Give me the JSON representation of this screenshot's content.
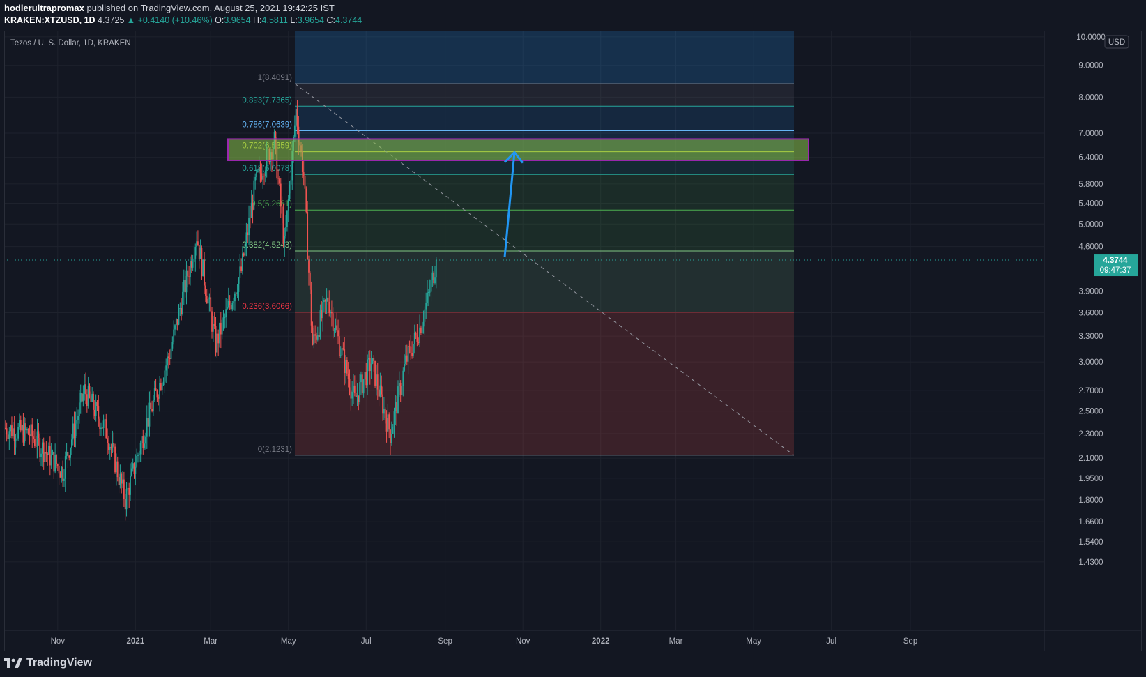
{
  "header": {
    "author": "hodlerultrapromax",
    "published_text": "published on TradingView.com, August 25, 2021 19:42:25 IST",
    "symbol": "KRAKEN:XTZUSD, 1D",
    "last": "4.3725",
    "change": "▲ +0.4140 (+10.46%)",
    "o_label": "O:",
    "o": "3.9654",
    "h_label": "H:",
    "h": "4.5811",
    "l_label": "L:",
    "l": "3.9654",
    "c_label": "C:",
    "c": "4.3744"
  },
  "footer": {
    "logo_text": "TradingView"
  },
  "colors": {
    "background": "#131722",
    "up": "#26a69a",
    "down": "#ef5350",
    "accent_blue": "#2196f3",
    "highlight_box": "#9c27b0"
  },
  "chart_data": {
    "type": "candlestick",
    "title": "Tezos / U. S. Dollar, 1D, KRAKEN",
    "currency": "USD",
    "y_scale": "log",
    "ylim": [
      1.3,
      10.0
    ],
    "y_ticks": [
      "10.0000",
      "9.0000",
      "8.0000",
      "7.0000",
      "6.4000",
      "5.8000",
      "5.4000",
      "5.0000",
      "4.6000",
      "3.9000",
      "3.6000",
      "3.3000",
      "3.0000",
      "2.7000",
      "2.5000",
      "2.3000",
      "2.1000",
      "1.9500",
      "1.8000",
      "1.6600",
      "1.5400",
      "1.4300"
    ],
    "x_ticks": [
      "Nov",
      "2021",
      "Mar",
      "May",
      "Jul",
      "Sep",
      "Nov",
      "2022",
      "Mar",
      "May",
      "Jul",
      "Sep"
    ],
    "price_label": {
      "value": "4.3744",
      "countdown": "09:47:37"
    },
    "fib_levels": [
      {
        "ratio": 1,
        "price": 8.4091,
        "label": "1(8.4091)",
        "color": "#787b86"
      },
      {
        "ratio": 0.893,
        "price": 7.7365,
        "label": "0.893(7.7365)",
        "color": "#26a69a"
      },
      {
        "ratio": 0.786,
        "price": 7.0639,
        "label": "0.786(7.0639)",
        "color": "#64b5f6"
      },
      {
        "ratio": 0.702,
        "price": 6.5359,
        "label": "0.702(6.5359)",
        "color": "#cddc39"
      },
      {
        "ratio": 0.618,
        "price": 6.0078,
        "label": "0.618(6.0078)",
        "color": "#26a69a"
      },
      {
        "ratio": 0.5,
        "price": 5.2661,
        "label": "0.5(5.2661)",
        "color": "#4caf50"
      },
      {
        "ratio": 0.382,
        "price": 4.5243,
        "label": "0.382(4.5243)",
        "color": "#81c784"
      },
      {
        "ratio": 0.236,
        "price": 3.6066,
        "label": "0.236(3.6066)",
        "color": "#f23645"
      },
      {
        "ratio": 0,
        "price": 2.1231,
        "label": "0(2.1231)",
        "color": "#787b86"
      }
    ],
    "highlight_zone": {
      "from": 6.33,
      "to": 6.85
    },
    "arrow": {
      "from": 4.42,
      "to": 6.52
    },
    "anchors": [
      {
        "date": "2020-09-01",
        "value": 2.4
      },
      {
        "date": "2020-10-10",
        "value": 2.3
      },
      {
        "date": "2020-11-05",
        "value": 2.0
      },
      {
        "date": "2020-11-22",
        "value": 2.7
      },
      {
        "date": "2020-12-10",
        "value": 2.3
      },
      {
        "date": "2020-12-24",
        "value": 1.8
      },
      {
        "date": "2021-01-10",
        "value": 2.4
      },
      {
        "date": "2021-01-28",
        "value": 3.1
      },
      {
        "date": "2021-02-18",
        "value": 4.8
      },
      {
        "date": "2021-03-05",
        "value": 3.2
      },
      {
        "date": "2021-03-25",
        "value": 4.2
      },
      {
        "date": "2021-04-05",
        "value": 5.8
      },
      {
        "date": "2021-04-20",
        "value": 6.8
      },
      {
        "date": "2021-04-28",
        "value": 4.6
      },
      {
        "date": "2021-05-07",
        "value": 7.6
      },
      {
        "date": "2021-05-13",
        "value": 6.0
      },
      {
        "date": "2021-05-20",
        "value": 3.2
      },
      {
        "date": "2021-06-01",
        "value": 3.8
      },
      {
        "date": "2021-06-10",
        "value": 3.2
      },
      {
        "date": "2021-06-22",
        "value": 2.6
      },
      {
        "date": "2021-07-05",
        "value": 3.0
      },
      {
        "date": "2021-07-20",
        "value": 2.3
      },
      {
        "date": "2021-08-01",
        "value": 3.0
      },
      {
        "date": "2021-08-12",
        "value": 3.4
      },
      {
        "date": "2021-08-20",
        "value": 3.9
      },
      {
        "date": "2021-08-25",
        "value": 4.37
      }
    ]
  }
}
